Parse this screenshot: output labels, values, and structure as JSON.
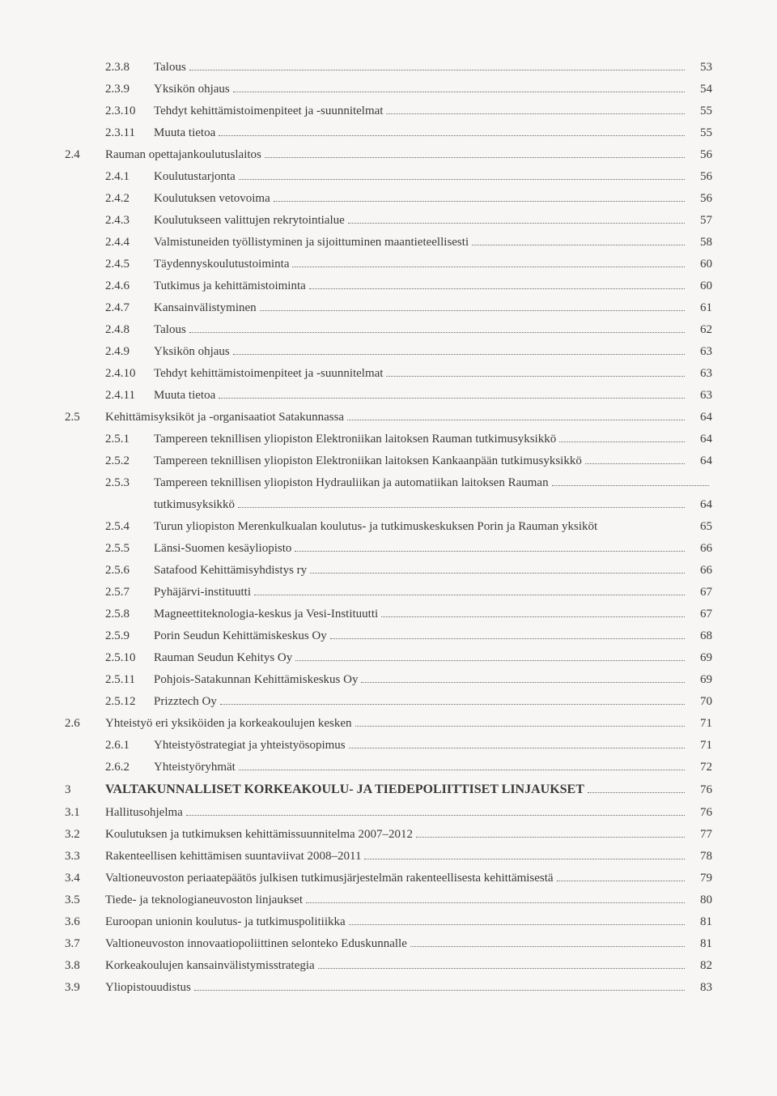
{
  "toc": [
    {
      "level": 3,
      "num": "2.3.8",
      "title": "Talous",
      "page": "53"
    },
    {
      "level": 3,
      "num": "2.3.9",
      "title": "Yksikön ohjaus",
      "page": "54"
    },
    {
      "level": 3,
      "num": "2.3.10",
      "title": "Tehdyt kehittämistoimenpiteet ja -suunnitelmat",
      "page": "55"
    },
    {
      "level": 3,
      "num": "2.3.11",
      "title": "Muuta tietoa",
      "page": "55"
    },
    {
      "level": 2,
      "num": "2.4",
      "title": "Rauman opettajankoulutuslaitos",
      "page": "56"
    },
    {
      "level": 3,
      "num": "2.4.1",
      "title": "Koulutustarjonta",
      "page": "56"
    },
    {
      "level": 3,
      "num": "2.4.2",
      "title": "Koulutuksen vetovoima",
      "page": "56"
    },
    {
      "level": 3,
      "num": "2.4.3",
      "title": "Koulutukseen valittujen rekrytointialue",
      "page": "57"
    },
    {
      "level": 3,
      "num": "2.4.4",
      "title": "Valmistuneiden työllistyminen ja sijoittuminen maantieteellisesti",
      "page": "58"
    },
    {
      "level": 3,
      "num": "2.4.5",
      "title": "Täydennyskoulutustoiminta",
      "page": "60"
    },
    {
      "level": 3,
      "num": "2.4.6",
      "title": "Tutkimus ja kehittämistoiminta",
      "page": "60"
    },
    {
      "level": 3,
      "num": "2.4.7",
      "title": "Kansainvälistyminen",
      "page": "61"
    },
    {
      "level": 3,
      "num": "2.4.8",
      "title": "Talous",
      "page": "62"
    },
    {
      "level": 3,
      "num": "2.4.9",
      "title": "Yksikön ohjaus",
      "page": "63"
    },
    {
      "level": 3,
      "num": "2.4.10",
      "title": "Tehdyt kehittämistoimenpiteet ja -suunnitelmat",
      "page": "63"
    },
    {
      "level": 3,
      "num": "2.4.11",
      "title": "Muuta tietoa",
      "page": "63"
    },
    {
      "level": 2,
      "num": "2.5",
      "title": "Kehittämisyksiköt ja -organisaatiot Satakunnassa",
      "page": "64"
    },
    {
      "level": 3,
      "num": "2.5.1",
      "title": "Tampereen teknillisen yliopiston Elektroniikan laitoksen Rauman tutkimusyksikkö",
      "page": "64"
    },
    {
      "level": 3,
      "num": "2.5.2",
      "title": "Tampereen teknillisen yliopiston Elektroniikan laitoksen Kankaanpään tutkimusyksikkö",
      "page": "64"
    },
    {
      "level": 3,
      "num": "2.5.3",
      "title": "Tampereen teknillisen yliopiston Hydrauliikan ja automatiikan laitoksen Rauman",
      "page": "",
      "noLeader": true
    },
    {
      "level": 3,
      "num": "",
      "title": "tutkimusyksikkö",
      "page": "64"
    },
    {
      "level": 3,
      "num": "2.5.4",
      "title": "Turun yliopiston Merenkulkualan koulutus- ja tutkimuskeskuksen Porin ja Rauman yksiköt",
      "page": "65",
      "noLeader": true
    },
    {
      "level": 3,
      "num": "2.5.5",
      "title": "Länsi-Suomen kesäyliopisto",
      "page": "66"
    },
    {
      "level": 3,
      "num": "2.5.6",
      "title": "Satafood Kehittämisyhdistys ry",
      "page": "66"
    },
    {
      "level": 3,
      "num": "2.5.7",
      "title": "Pyhäjärvi-instituutti",
      "page": "67"
    },
    {
      "level": 3,
      "num": "2.5.8",
      "title": "Magneettiteknologia-keskus ja Vesi-Instituutti",
      "page": "67"
    },
    {
      "level": 3,
      "num": "2.5.9",
      "title": "Porin Seudun Kehittämiskeskus Oy",
      "page": "68"
    },
    {
      "level": 3,
      "num": "2.5.10",
      "title": "Rauman Seudun Kehitys Oy",
      "page": "69"
    },
    {
      "level": 3,
      "num": "2.5.11",
      "title": "Pohjois-Satakunnan Kehittämiskeskus Oy",
      "page": "69"
    },
    {
      "level": 3,
      "num": "2.5.12",
      "title": "Prizztech Oy",
      "page": "70"
    },
    {
      "level": 2,
      "num": "2.6",
      "title": "Yhteistyö eri yksiköiden ja korkeakoulujen kesken",
      "page": "71"
    },
    {
      "level": 3,
      "num": "2.6.1",
      "title": "Yhteistyöstrategiat ja yhteistyösopimus",
      "page": "71"
    },
    {
      "level": 3,
      "num": "2.6.2",
      "title": "Yhteistyöryhmät",
      "page": "72"
    },
    {
      "level": 1,
      "num": "3",
      "title": "VALTAKUNNALLISET KORKEAKOULU- JA TIEDEPOLIITTISET LINJAUKSET",
      "page": "76",
      "heading": true
    },
    {
      "level": 2,
      "num": "3.1",
      "title": "Hallitusohjelma",
      "page": "76"
    },
    {
      "level": 2,
      "num": "3.2",
      "title": "Koulutuksen ja tutkimuksen kehittämissuunnitelma 2007–2012",
      "page": "77"
    },
    {
      "level": 2,
      "num": "3.3",
      "title": "Rakenteellisen kehittämisen suuntaviivat 2008–2011",
      "page": "78"
    },
    {
      "level": 2,
      "num": "3.4",
      "title": "Valtioneuvoston periaatepäätös julkisen tutkimusjärjestelmän rakenteellisesta kehittämisestä",
      "page": "79"
    },
    {
      "level": 2,
      "num": "3.5",
      "title": "Tiede- ja teknologianeuvoston linjaukset",
      "page": "80"
    },
    {
      "level": 2,
      "num": "3.6",
      "title": "Euroopan unionin koulutus- ja tutkimuspolitiikka",
      "page": "81"
    },
    {
      "level": 2,
      "num": "3.7",
      "title": "Valtioneuvoston innovaatiopoliittinen selonteko Eduskunnalle",
      "page": "81"
    },
    {
      "level": 2,
      "num": "3.8",
      "title": "Korkeakoulujen kansainvälistymisstrategia",
      "page": "82"
    },
    {
      "level": 2,
      "num": "3.9",
      "title": "Yliopistouudistus",
      "page": "83"
    }
  ]
}
